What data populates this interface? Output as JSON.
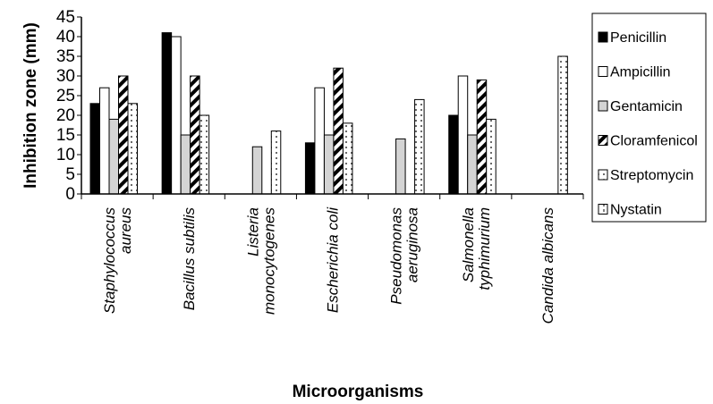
{
  "chart_data": {
    "type": "bar",
    "ylabel": "Inhibition zone (mm)",
    "xlabel": "Microorganisms",
    "ylim": [
      0,
      45
    ],
    "yticks": [
      "0",
      "5",
      "10",
      "15",
      "20",
      "25",
      "30",
      "35",
      "40",
      "45"
    ],
    "categories": [
      [
        "Staphylococcus",
        "aureus"
      ],
      [
        "Bacillus subtilis"
      ],
      [
        "Listeria",
        "monocytogenes"
      ],
      [
        "Escherichia coli"
      ],
      [
        "Pseudomonas",
        "aeruginosa"
      ],
      [
        "Salmonella",
        "typhimurium"
      ],
      [
        "Candida albicans"
      ]
    ],
    "legend_position": "right",
    "series": [
      {
        "name": "Penicillin",
        "pattern": "solid-black",
        "values": [
          23,
          41,
          0,
          13,
          0,
          20,
          0
        ]
      },
      {
        "name": "Ampicillin",
        "pattern": "white",
        "values": [
          27,
          40,
          0,
          27,
          0,
          30,
          0
        ]
      },
      {
        "name": "Gentamicin",
        "pattern": "light-gray",
        "values": [
          19,
          15,
          12,
          15,
          14,
          15,
          0
        ]
      },
      {
        "name": "Cloramfenicol",
        "pattern": "diagonal-hatch",
        "values": [
          30,
          30,
          0,
          32,
          0,
          29,
          0
        ]
      },
      {
        "name": "Streptomycin",
        "pattern": "dotted",
        "values": [
          23,
          20,
          16,
          18,
          24,
          19,
          35
        ]
      },
      {
        "name": "Nystatin",
        "pattern": "vertical-dash",
        "values": [
          0,
          0,
          0,
          0,
          0,
          0,
          0
        ]
      }
    ]
  }
}
